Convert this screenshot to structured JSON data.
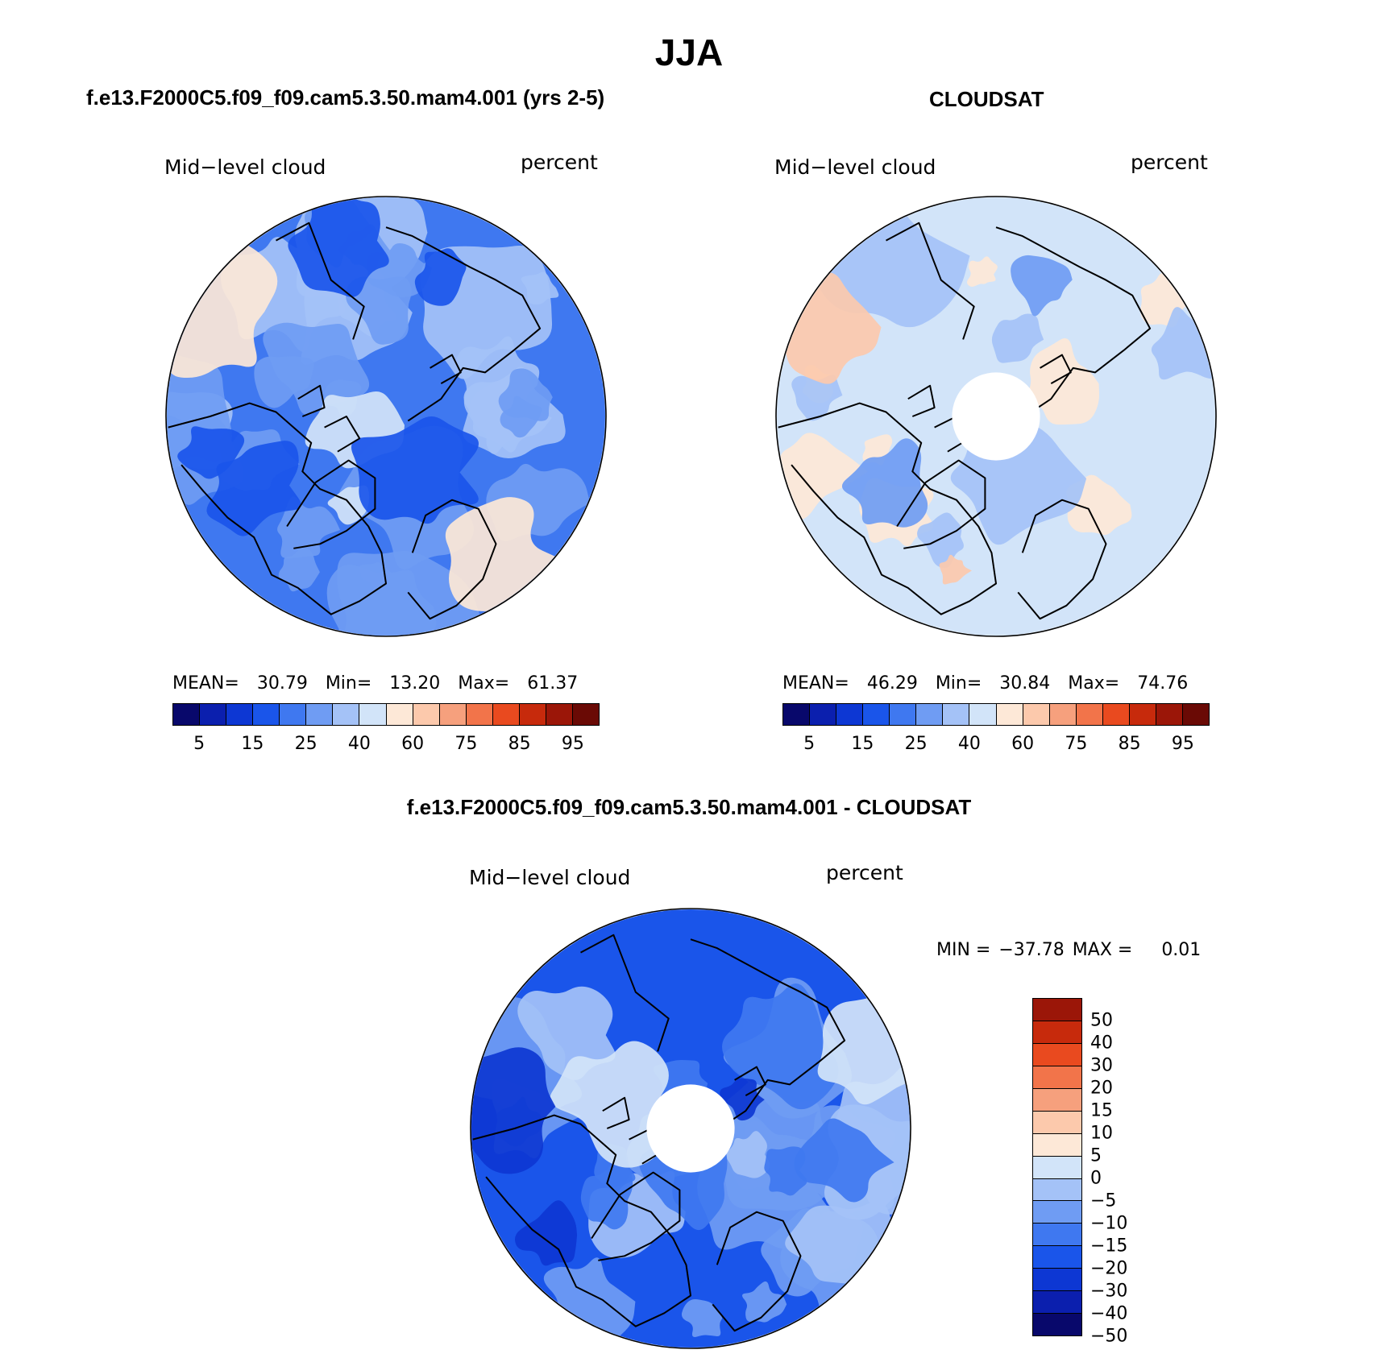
{
  "title": "JJA",
  "colors": {
    "abs_scale": [
      "#08086b",
      "#0b1fae",
      "#0d37d3",
      "#1a55ea",
      "#3f78f0",
      "#6f9cf3",
      "#a4c2f7",
      "#d2e4f9",
      "#fde8d7",
      "#fcc9ac",
      "#f6a07d",
      "#f2744a",
      "#e94a1f",
      "#c72a0c",
      "#9b1608",
      "#6a0a05"
    ],
    "diff_scale": [
      "#08086b",
      "#0b1fae",
      "#0d37d3",
      "#1a55ea",
      "#3f78f0",
      "#6f9cf3",
      "#a4c2f7",
      "#d2e4f9",
      "#fde8d7",
      "#fcc9ac",
      "#f6a07d",
      "#f2744a",
      "#e94a1f",
      "#c72a0c",
      "#9b1608"
    ],
    "coast": "#000000"
  },
  "panels": {
    "model": {
      "title": "f.e13.F2000C5.f09_f09.cam5.3.50.mam4.001 (yrs 2-5)",
      "variable": "Mid−level cloud",
      "units": "percent",
      "stats": {
        "mean_label": "MEAN=",
        "mean": "30.79",
        "min_label": "Min=",
        "min": "13.20",
        "max_label": "Max=",
        "max": "61.37"
      },
      "map": {
        "base_color_index": 4,
        "missing_pole": false,
        "patches": [
          [
            6,
            0.42
          ],
          [
            5,
            0.72
          ],
          [
            7,
            0.08
          ],
          [
            8,
            0.05
          ],
          [
            3,
            0.18
          ]
        ]
      }
    },
    "obs": {
      "title": "CLOUDSAT",
      "variable": "Mid−level cloud",
      "units": "percent",
      "stats": {
        "mean_label": "MEAN=",
        "mean": "46.29",
        "min_label": "Min=",
        "min": "30.84",
        "max_label": "Max=",
        "max": "74.76"
      },
      "map": {
        "base_color_index": 7,
        "missing_pole": true,
        "patches": [
          [
            8,
            0.3
          ],
          [
            6,
            0.22
          ],
          [
            9,
            0.08
          ],
          [
            5,
            0.04
          ]
        ]
      }
    },
    "diff": {
      "title": "f.e13.F2000C5.f09_f09.cam5.3.50.mam4.001 - CLOUDSAT",
      "variable": "Mid−level cloud",
      "units": "percent",
      "stats": {
        "min_label": "MIN =",
        "min": "−37.78",
        "max_label": "MAX =",
        "max": "0.01"
      },
      "map": {
        "base_color_index": 3,
        "missing_pole": true,
        "patches": [
          [
            5,
            0.5
          ],
          [
            6,
            0.22
          ],
          [
            4,
            0.3
          ],
          [
            7,
            0.06
          ],
          [
            2,
            0.1
          ]
        ]
      }
    }
  },
  "colorbar_abs": {
    "tick_labels": [
      "5",
      "15",
      "25",
      "40",
      "60",
      "75",
      "85",
      "95"
    ]
  },
  "colorbar_diff": {
    "tick_labels": [
      "50",
      "40",
      "30",
      "20",
      "15",
      "10",
      "5",
      "0",
      "−5",
      "−10",
      "−15",
      "−20",
      "−30",
      "−40",
      "−50"
    ]
  }
}
